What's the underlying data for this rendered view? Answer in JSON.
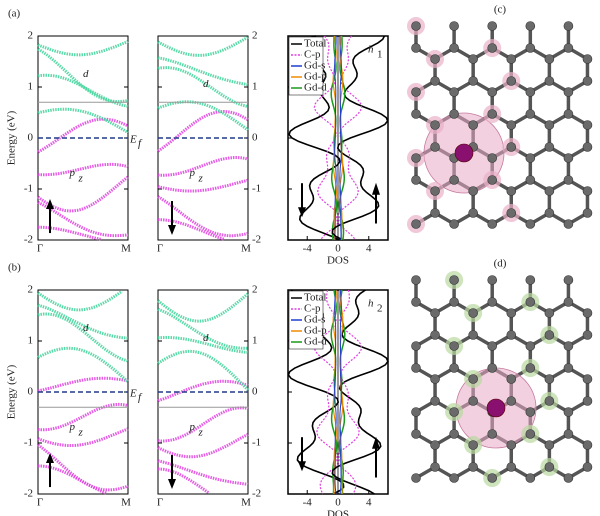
{
  "panel_labels": [
    "(a)",
    "(b)",
    "(c)",
    "(d)"
  ],
  "energy_axis": {
    "label": "Energy (eV)",
    "ylim": [
      -2,
      2
    ],
    "yticks": [
      -2,
      -1,
      0,
      1,
      2
    ]
  },
  "k_labels": [
    "Γ",
    "M"
  ],
  "fermi_label": {
    "main": "E",
    "sub": "f"
  },
  "band_labels": {
    "d": "d",
    "p": "p",
    "z": "z"
  },
  "dos_axis": {
    "label": "DOS",
    "xlim": [
      -6.5,
      6.5
    ],
    "xticks": [
      -4,
      0,
      4
    ]
  },
  "legend": [
    {
      "name": "Total",
      "color": "#000000"
    },
    {
      "name": "C-p",
      "color": "#e040e0"
    },
    {
      "name": "Gd-s",
      "color": "#1f3fd0"
    },
    {
      "name": "Gd-p",
      "color": "#f08a00"
    },
    {
      "name": "Gd-d",
      "color": "#1a9a1a"
    }
  ],
  "rows": [
    {
      "tag": "h",
      "sub": "1"
    },
    {
      "tag": "h",
      "sub": "2"
    }
  ]
}
